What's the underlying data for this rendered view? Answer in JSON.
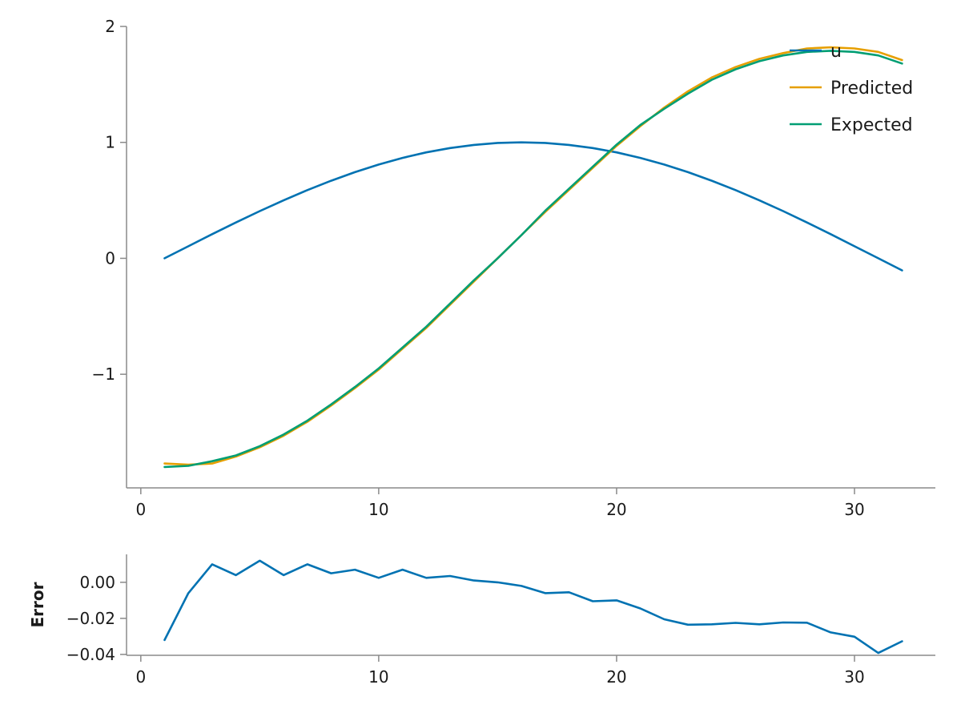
{
  "chart_data": [
    {
      "type": "line",
      "title": "",
      "xlabel": "",
      "ylabel": "",
      "xlim": [
        -0.6,
        33.4
      ],
      "ylim": [
        -1.98,
        2.0
      ],
      "xticks": [
        0,
        10,
        20,
        30
      ],
      "yticks": [
        -1,
        0,
        1,
        2
      ],
      "xtick_labels": [
        "0",
        "10",
        "20",
        "30"
      ],
      "ytick_labels": [
        "−1",
        "0",
        "1",
        "2"
      ],
      "grid": false,
      "legend_position": "top-right",
      "x": [
        1,
        2,
        3,
        4,
        5,
        6,
        7,
        8,
        9,
        10,
        11,
        12,
        13,
        14,
        15,
        16,
        17,
        18,
        19,
        20,
        21,
        22,
        23,
        24,
        25,
        26,
        27,
        28,
        29,
        30,
        31,
        32
      ],
      "series": [
        {
          "name": "u",
          "color": "#0072B2",
          "values": [
            0.0,
            0.104,
            0.208,
            0.309,
            0.407,
            0.5,
            0.588,
            0.669,
            0.743,
            0.809,
            0.866,
            0.914,
            0.951,
            0.978,
            0.995,
            1.0,
            0.995,
            0.978,
            0.951,
            0.914,
            0.866,
            0.809,
            0.743,
            0.669,
            0.588,
            0.5,
            0.407,
            0.309,
            0.208,
            0.104,
            0.0,
            -0.104
          ]
        },
        {
          "name": "Predicted",
          "color": "#E69F00",
          "values": [
            -1.77,
            -1.78,
            -1.77,
            -1.71,
            -1.63,
            -1.53,
            -1.41,
            -1.27,
            -1.12,
            -0.96,
            -0.78,
            -0.6,
            -0.4,
            -0.2,
            0.0,
            0.2,
            0.4,
            0.59,
            0.78,
            0.97,
            1.14,
            1.3,
            1.44,
            1.56,
            1.65,
            1.72,
            1.77,
            1.81,
            1.82,
            1.81,
            1.78,
            1.71
          ]
        },
        {
          "name": "Expected",
          "color": "#009E73",
          "values": [
            -1.8,
            -1.79,
            -1.75,
            -1.7,
            -1.62,
            -1.52,
            -1.4,
            -1.26,
            -1.11,
            -0.95,
            -0.77,
            -0.59,
            -0.39,
            -0.19,
            0.0,
            0.2,
            0.41,
            0.6,
            0.79,
            0.98,
            1.15,
            1.29,
            1.42,
            1.54,
            1.63,
            1.7,
            1.75,
            1.78,
            1.79,
            1.78,
            1.75,
            1.68
          ]
        }
      ]
    },
    {
      "type": "line",
      "title": "",
      "xlabel": "",
      "ylabel": "Error",
      "xlim": [
        -0.6,
        33.4
      ],
      "ylim": [
        -0.0405,
        0.0155
      ],
      "xticks": [
        0,
        10,
        20,
        30
      ],
      "yticks": [
        -0.04,
        -0.02,
        0.0
      ],
      "xtick_labels": [
        "0",
        "10",
        "20",
        "30"
      ],
      "ytick_labels": [
        "−0.04",
        "−0.02",
        "0.00"
      ],
      "grid": false,
      "x": [
        1,
        2,
        3,
        4,
        5,
        6,
        7,
        8,
        9,
        10,
        11,
        12,
        13,
        14,
        15,
        16,
        17,
        18,
        19,
        20,
        21,
        22,
        23,
        24,
        25,
        26,
        27,
        28,
        29,
        30,
        31,
        32
      ],
      "series": [
        {
          "color": "#0072B2",
          "values": [
            -0.032,
            -0.006,
            0.01,
            0.004,
            0.012,
            0.004,
            0.01,
            0.005,
            0.007,
            0.0025,
            0.007,
            0.0025,
            0.0035,
            0.001,
            0.0,
            -0.002,
            -0.006,
            -0.0055,
            -0.0105,
            -0.01,
            -0.0145,
            -0.0205,
            -0.0235,
            -0.0233,
            -0.0225,
            -0.0233,
            -0.0223,
            -0.0224,
            -0.0278,
            -0.0302,
            -0.0392,
            -0.0327
          ]
        }
      ]
    }
  ]
}
